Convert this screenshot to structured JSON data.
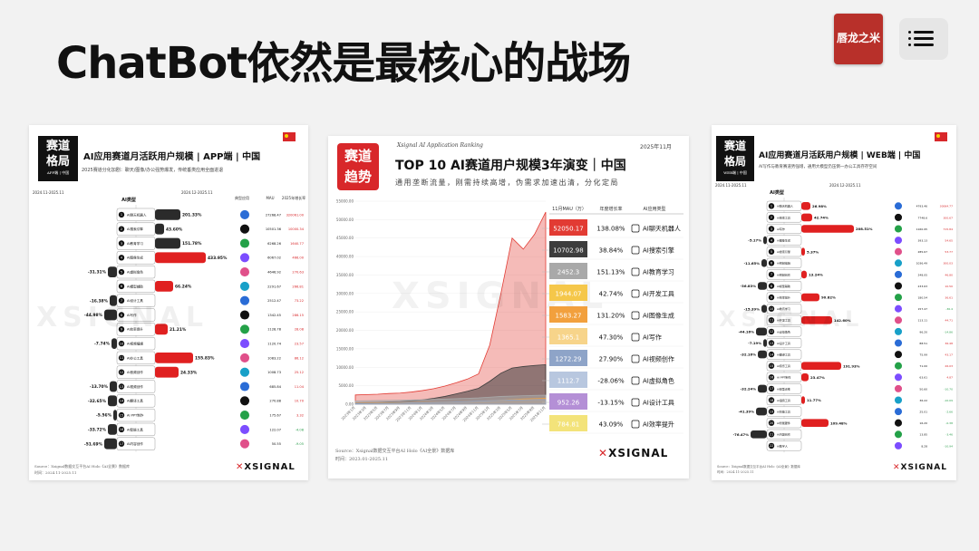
{
  "page": {
    "title": "ChatBot依然是最核心的战场"
  },
  "brand": {
    "logo_text": "唇龙之米",
    "menu_icon": "hamburger-menu-icon",
    "accent": "#d8272a"
  },
  "left_card": {
    "badge": [
      "赛道",
      "格局"
    ],
    "badge_sub": "APP端 | 中国",
    "title": "AI应用赛道月活跃用户规模 | APP端 | 中国",
    "subtitle": "2025赛道分化加剧：聊天/图像/办公强势爆发，传统垂类应用全面进退",
    "col_left": "2024.11-2025.11",
    "col_mid": "2024.12-2025.11",
    "col_heads": [
      "典型应用",
      "MAU",
      "2025年增长率"
    ],
    "center_head": "AI类型",
    "categories": [
      "AI聊天机器人",
      "AI搜索引擎",
      "AI教育学习",
      "AI图像生成",
      "AI虚拟角色",
      "AI模型辅助",
      "AI设计工具",
      "AI写作",
      "AI效率提升",
      "AI视频编辑",
      "AI办公工具",
      "AI音频创作",
      "AI视频创作",
      "AI翻译工具",
      "AI PPT制作",
      "AI智能工具",
      "AI内容创作"
    ],
    "changes": [
      {
        "label": "201.33%",
        "dir": "right",
        "len": 28,
        "red": false
      },
      {
        "label": "43.60%",
        "dir": "right",
        "len": 10,
        "red": false
      },
      {
        "label": "151.78%",
        "dir": "right",
        "len": 28,
        "red": false
      },
      {
        "label": "433.95%",
        "dir": "right",
        "len": 56,
        "red": true
      },
      {
        "label": "-31.31%",
        "dir": "left",
        "len": 10,
        "red": false
      },
      {
        "label": "66.24%",
        "dir": "right",
        "len": 20,
        "red": true
      },
      {
        "label": "-16.38%",
        "dir": "left",
        "len": 8,
        "red": false
      },
      {
        "label": "-44.98%",
        "dir": "left",
        "len": 14,
        "red": false
      },
      {
        "label": "21.21%",
        "dir": "right",
        "len": 14,
        "red": true
      },
      {
        "label": "-7.74%",
        "dir": "left",
        "len": 6,
        "red": false
      },
      {
        "label": "155.83%",
        "dir": "right",
        "len": 42,
        "red": true
      },
      {
        "label": "24.33%",
        "dir": "right",
        "len": 26,
        "red": true
      },
      {
        "label": "-13.70%",
        "dir": "left",
        "len": 8,
        "red": false
      },
      {
        "label": "-32.65%",
        "dir": "left",
        "len": 10,
        "red": false
      },
      {
        "label": "-5.56%",
        "dir": "left",
        "len": 4,
        "red": false
      },
      {
        "label": "-33.72%",
        "dir": "left",
        "len": 10,
        "red": false
      },
      {
        "label": "-51.69%",
        "dir": "left",
        "len": 14,
        "red": false
      }
    ],
    "mau": [
      "27268.47",
      "10501.36",
      "6268.26",
      "6067.02",
      "4646.92",
      "2291.67",
      "2512.47",
      "1342.45",
      "1128.78",
      "1120.74",
      "1083.22",
      "1008.73",
      "685.84",
      "270.88",
      "175.67",
      "122.07",
      "50.55"
    ],
    "growth": [
      "320061.00",
      "10000.34",
      "1640.77",
      "466.00",
      "270.63",
      "266.81",
      "73.22",
      "286.15",
      "28.08",
      "23.57",
      "86.12",
      "25.12",
      "11.04",
      "10.70",
      "3.32",
      "-4.08",
      "-9.05"
    ],
    "footer": [
      "Source：Xsignal数据交互平台AI Holo《AI全景》数据库",
      "时间：2024.11-2025.11"
    ],
    "logo": "XSIGNAL"
  },
  "mid_card": {
    "badge": [
      "赛道",
      "趋势"
    ],
    "kicker": "Xsignal AI Application Ranking",
    "date": "2025年11月",
    "title": "TOP 10 AI赛道用户规模3年演变｜中国",
    "subtitle": "通用垄断流量，刚需持续高增，伪需求加速出清，分化定局",
    "table_heads": [
      "11月MAU（万）",
      "年度增长率",
      "AI应用类型"
    ],
    "rows": [
      {
        "mau": "52050.17",
        "growth": "138.08%",
        "type": "AI聊天机器人",
        "color": "#e23b33",
        "icon": "robot-icon"
      },
      {
        "mau": "10702.98",
        "growth": "38.84%",
        "type": "AI搜索引擎",
        "color": "#3d3d3d",
        "icon": "search-engine-icon"
      },
      {
        "mau": "2452.3",
        "growth": "151.13%",
        "type": "AI教育学习",
        "color": "#a9a9a9",
        "icon": "education-icon"
      },
      {
        "mau": "1944.07",
        "growth": "42.74%",
        "type": "AI开发工具",
        "color": "#f5c74a",
        "icon": "code-icon"
      },
      {
        "mau": "1583.27",
        "growth": "131.20%",
        "type": "AI图像生成",
        "color": "#f2a03d",
        "icon": "image-icon"
      },
      {
        "mau": "1365.1",
        "growth": "47.30%",
        "type": "AI写作",
        "color": "#f7d48a",
        "icon": "pen-icon"
      },
      {
        "mau": "1272.29",
        "growth": "27.90%",
        "type": "AI视频创作",
        "color": "#8ea4c8",
        "icon": "video-icon"
      },
      {
        "mau": "1112.7",
        "growth": "-28.06%",
        "type": "AI虚拟角色",
        "color": "#b8c7df",
        "icon": "avatar-icon"
      },
      {
        "mau": "952.26",
        "growth": "-13.15%",
        "type": "AI设计工具",
        "color": "#b48fd6",
        "icon": "design-icon"
      },
      {
        "mau": "784.81",
        "growth": "43.09%",
        "type": "AI效率提升",
        "color": "#f3e37a",
        "icon": "efficiency-icon"
      }
    ],
    "chart_data": {
      "type": "area",
      "y_ticks": [
        "55000.00",
        "50000.00",
        "45000.00",
        "40000.00",
        "35000.00",
        "30000.00",
        "25000.00",
        "20000.00",
        "15000.00",
        "10000.00",
        "5000.00",
        "0.00"
      ],
      "ylim": [
        0,
        55000
      ],
      "x_ticks": [
        "2023年1月",
        "2023年3月",
        "2023年5月",
        "2023年7月",
        "2023年9月",
        "2023年11月",
        "2024年1月",
        "2024年3月",
        "2024年5月",
        "2024年7月",
        "2024年9月",
        "2024年11月",
        "2025年1月",
        "2025年3月",
        "2025年5月",
        "2025年7月",
        "2025年9月",
        "2025年11月"
      ],
      "series": [
        {
          "color": "#e23b33",
          "values": [
            2500,
            2600,
            2700,
            2900,
            3000,
            3300,
            3700,
            4200,
            4900,
            5800,
            6800,
            8200,
            16000,
            30000,
            45000,
            42000,
            46000,
            52050
          ]
        },
        {
          "color": "#3d3d3d",
          "values": [
            400,
            450,
            500,
            600,
            700,
            900,
            1200,
            1600,
            2100,
            2800,
            3500,
            4300,
            6200,
            8400,
            9800,
            10200,
            10500,
            10703
          ]
        },
        {
          "color": "#a9a9a9",
          "values": [
            900,
            950,
            1000,
            1050,
            1100,
            1150,
            1200,
            1300,
            1400,
            1500,
            1600,
            1700,
            1900,
            2100,
            2200,
            2300,
            2400,
            2452
          ]
        },
        {
          "color": "#f2a03d",
          "values": [
            300,
            320,
            350,
            380,
            400,
            430,
            460,
            500,
            560,
            620,
            700,
            800,
            950,
            1100,
            1250,
            1400,
            1500,
            1583
          ]
        },
        {
          "color": "#8ea4c8",
          "values": [
            200,
            220,
            240,
            260,
            300,
            350,
            400,
            460,
            520,
            600,
            700,
            820,
            950,
            1050,
            1150,
            1200,
            1250,
            1272
          ]
        }
      ]
    },
    "footer": [
      "Source：Xsignal数据交互平台AI Holo《AI全景》数据库",
      "时间：2023.01-2025.11"
    ],
    "logo": "XSIGNAL"
  },
  "right_card": {
    "badge": [
      "赛道",
      "格局"
    ],
    "badge_sub": "WEB端 | 中国",
    "title": "AI应用赛道月活跃用户规模 | WEB端 | 中国",
    "subtitle": "AI写作与教育赛道势强增，通用大模型仍压倒一办公工具存存空间",
    "col_left": "2024.11-2025.11",
    "col_mid": "2024.12-2025.11",
    "center_head": "AI类型",
    "categories": [
      "AI聊天机器人",
      "AI搜索工具",
      "AI写作",
      "AI图像生成",
      "AI搜索引擎",
      "AI视频编辑",
      "AI视频创作",
      "AI模型辅助",
      "AI效率提升",
      "AI教育学习",
      "AI开发工具",
      "AI虚拟角色",
      "AI设计工具",
      "AI翻译工具",
      "AI音乐工具",
      "AI PPT制作",
      "AI模型训练",
      "AI语音工具",
      "AI智能工具",
      "AI智能硬件",
      "AI内容创作",
      "AI数字人"
    ],
    "changes": [
      {
        "label": "26.98%",
        "dir": "right",
        "len": 10,
        "red": true
      },
      {
        "label": "42.74%",
        "dir": "right",
        "len": 12,
        "red": true
      },
      {
        "label": "208.51%",
        "dir": "right",
        "len": 58,
        "red": true
      },
      {
        "label": "-5.17%",
        "dir": "left",
        "len": 4,
        "red": false
      },
      {
        "label": "5.37%",
        "dir": "right",
        "len": 4,
        "red": true
      },
      {
        "label": "-11.65%",
        "dir": "left",
        "len": 6,
        "red": false
      },
      {
        "label": "13.24%",
        "dir": "right",
        "len": 6,
        "red": true
      },
      {
        "label": "-36.83%",
        "dir": "left",
        "len": 10,
        "red": false
      },
      {
        "label": "90.82%",
        "dir": "right",
        "len": 20,
        "red": true
      },
      {
        "label": "-15.39%",
        "dir": "left",
        "len": 6,
        "red": false
      },
      {
        "label": "142.60%",
        "dir": "right",
        "len": 34,
        "red": true
      },
      {
        "label": "-44.16%",
        "dir": "left",
        "len": 12,
        "red": false
      },
      {
        "label": "-7.19%",
        "dir": "left",
        "len": 4,
        "red": false
      },
      {
        "label": "-32.16%",
        "dir": "left",
        "len": 10,
        "red": false
      },
      {
        "label": "191.93%",
        "dir": "right",
        "len": 44,
        "red": true
      },
      {
        "label": "23.47%",
        "dir": "right",
        "len": 8,
        "red": true
      },
      {
        "label": "-32.24%",
        "dir": "left",
        "len": 10,
        "red": false
      },
      {
        "label": "11.77%",
        "dir": "right",
        "len": 4,
        "red": true
      },
      {
        "label": "-41.39%",
        "dir": "left",
        "len": 12,
        "red": false
      },
      {
        "label": "109.48%",
        "dir": "right",
        "len": 30,
        "red": true
      },
      {
        "label": "-76.47%",
        "dir": "left",
        "len": 18,
        "red": false
      },
      {
        "label": "",
        "dir": "none",
        "len": 0,
        "red": false
      }
    ],
    "mau": [
      "4793.46",
      "7748.6",
      "1160.95",
      "393.13",
      "285.67",
      "1036.49",
      "248.05",
      "233.63",
      "180.54",
      "157.47",
      "113.11",
      "96.20",
      "88.51",
      "75.99",
      "71.00",
      "63.61",
      "50.60",
      "36.22",
      "25.01",
      "16.20",
      "13.85",
      "8.28"
    ],
    "growth": [
      "30064.77",
      "300.67",
      "715.84",
      "54.65",
      "53.77",
      "300.03",
      "46.80",
      "10.50",
      "36.61",
      "-36.4",
      "44.71",
      "-14.86",
      "36.48",
      "43.17",
      "26.03",
      "4.87",
      "-10.70",
      "-10.09",
      "-2.66",
      "-0.38",
      "-3.46",
      "-10.94"
    ],
    "footer": [
      "Source：Xsignal数据交互平台AI Holo《AI全景》数据库",
      "时间：2024.11-2025.11"
    ],
    "logo": "XSIGNAL"
  }
}
